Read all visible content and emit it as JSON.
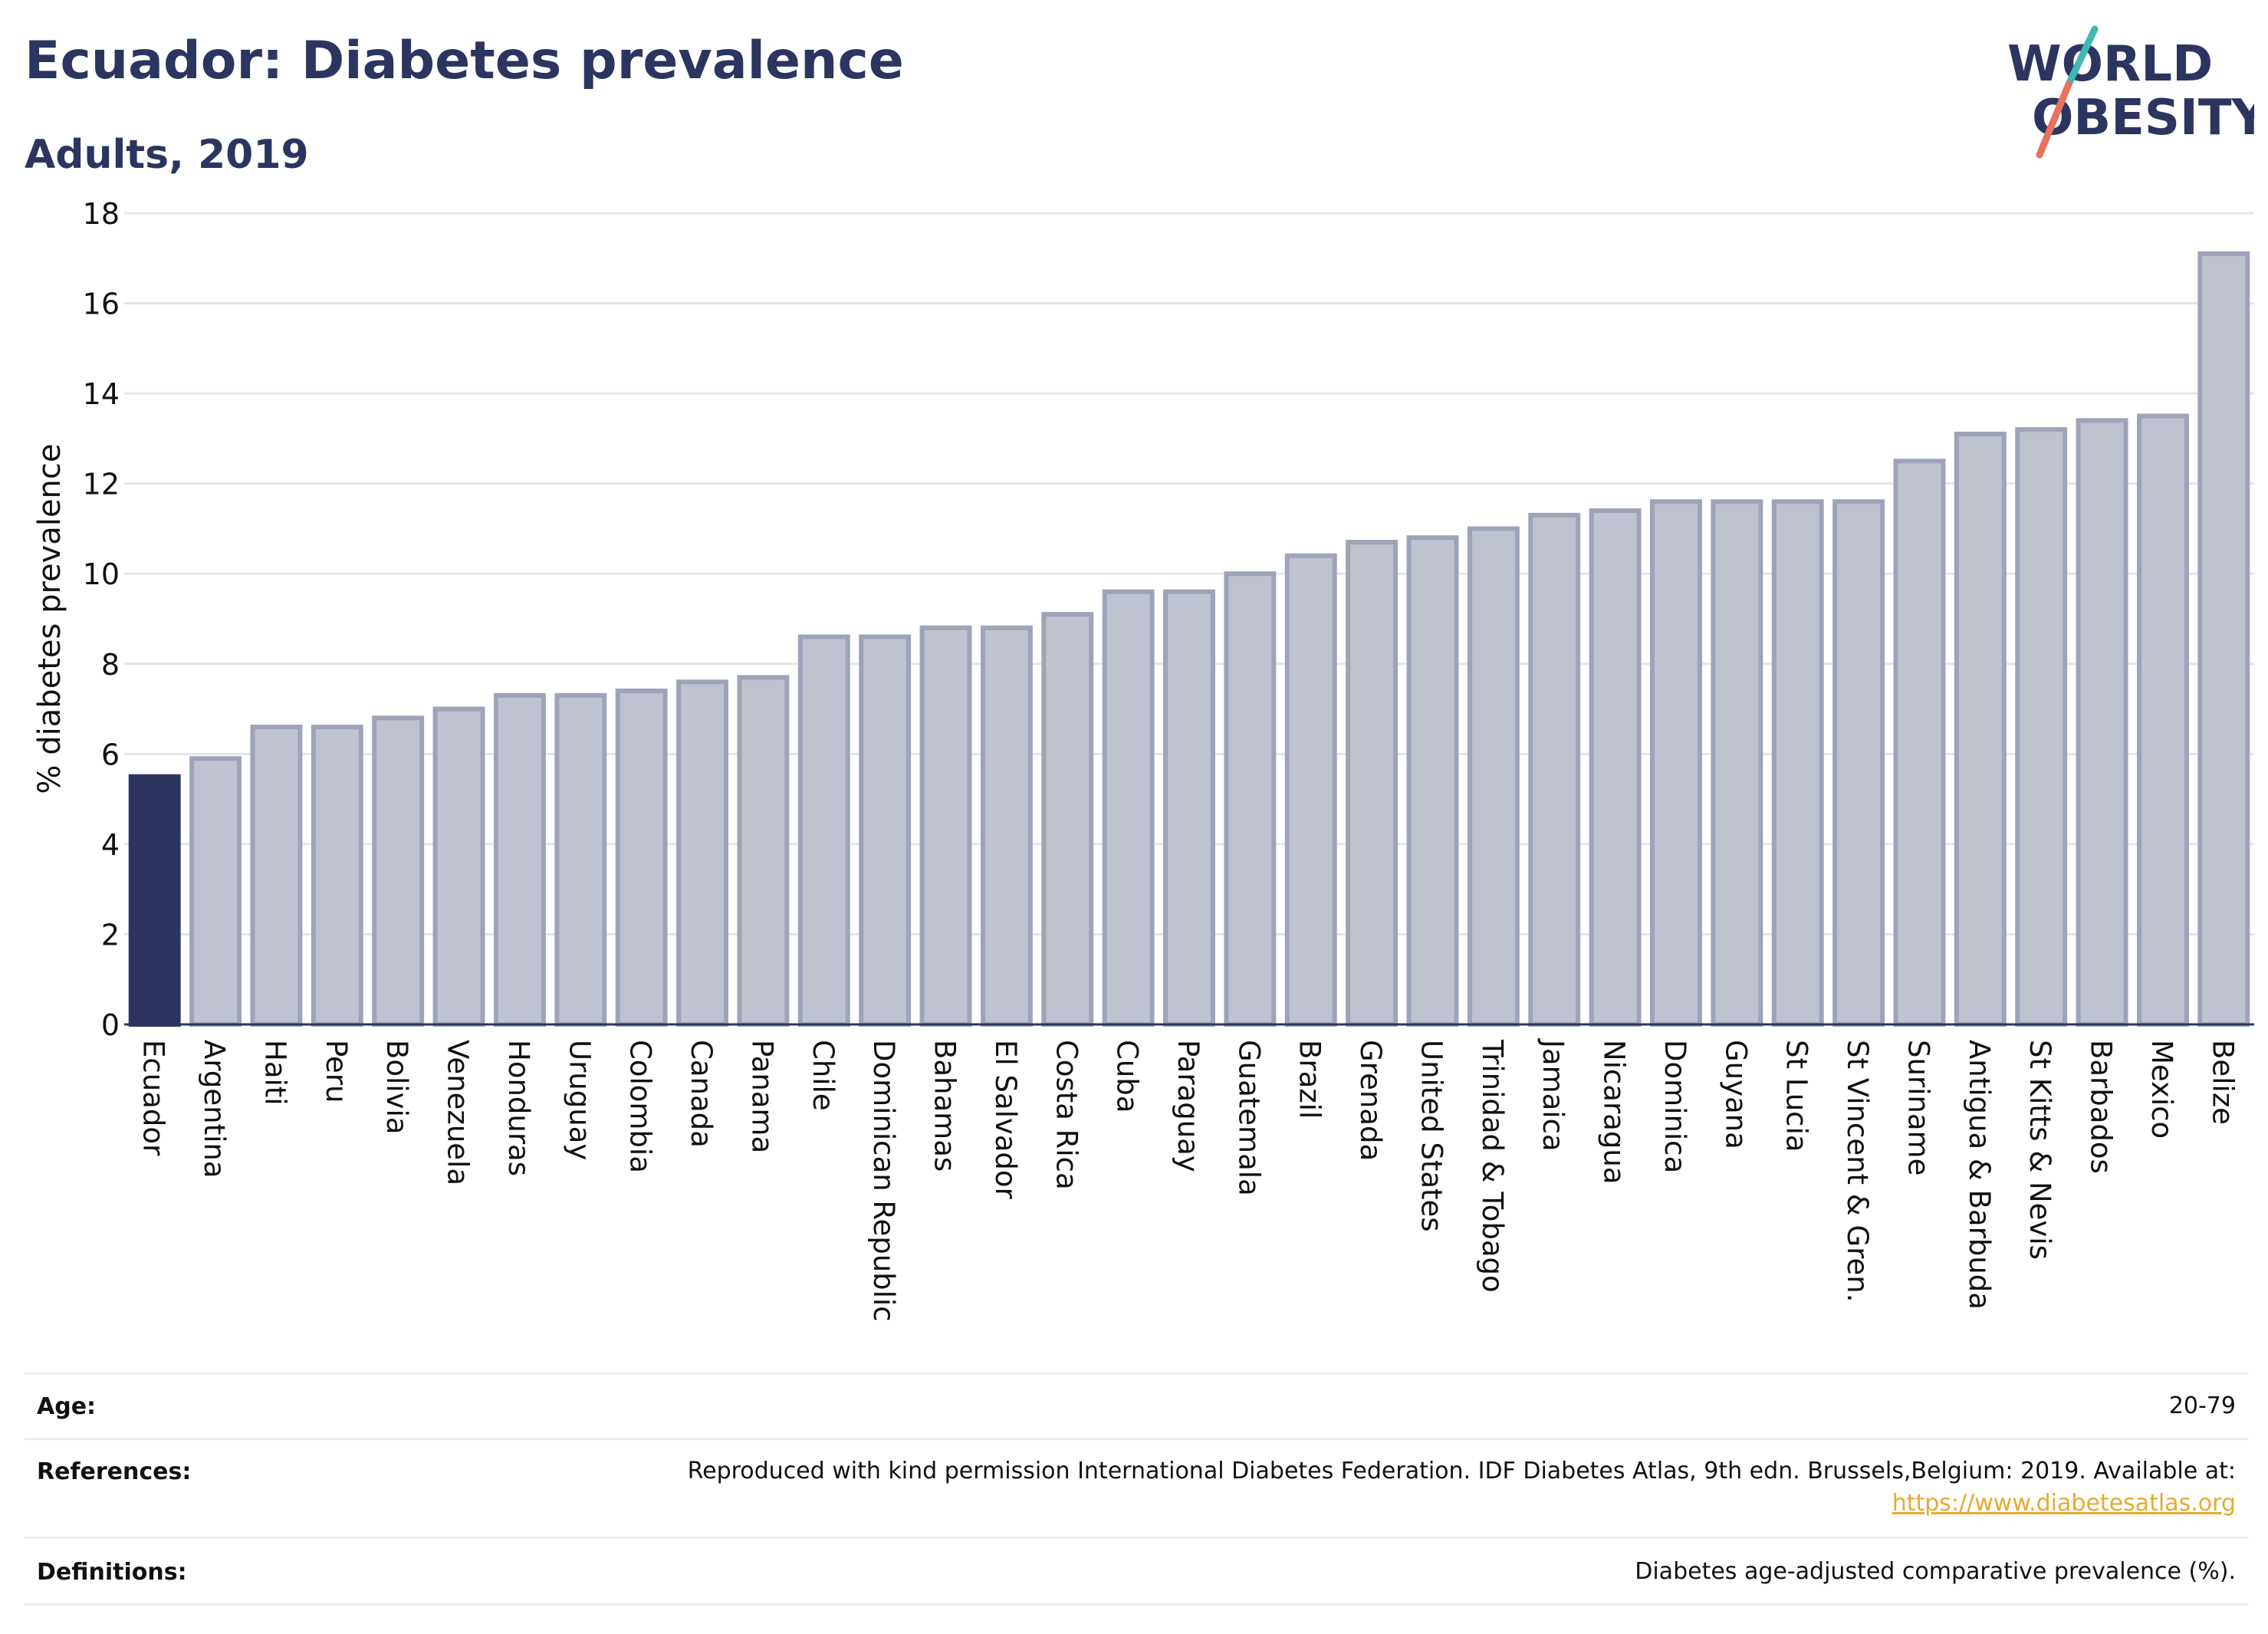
{
  "header": {
    "title": "Ecuador: Diabetes prevalence",
    "subtitle": "Adults, 2019"
  },
  "logo": {
    "line1": "WORLD",
    "line2": "OBESITY",
    "text_color": "#2c3560",
    "slash_colors": [
      "#e8715f",
      "#3fb8b0"
    ]
  },
  "chart_data": {
    "type": "bar",
    "title": "Ecuador: Diabetes prevalence",
    "subtitle": "Adults, 2019",
    "ylabel": "% diabetes prevalence",
    "xlabel": "",
    "ylim": [
      0,
      18
    ],
    "yticks": [
      0,
      2,
      4,
      6,
      8,
      10,
      12,
      14,
      16,
      18
    ],
    "grid": true,
    "highlight": "Ecuador",
    "colors": {
      "highlight": "#2c3560",
      "bar_fill": "#bfc2cf",
      "bar_stroke": "#9ea3b8",
      "grid": "#e4e6ea",
      "axis": "#2c3560"
    },
    "categories": [
      "Ecuador",
      "Argentina",
      "Haiti",
      "Peru",
      "Bolivia",
      "Venezuela",
      "Honduras",
      "Uruguay",
      "Colombia",
      "Canada",
      "Panama",
      "Chile",
      "Dominican Republic",
      "Bahamas",
      "El Salvador",
      "Costa Rica",
      "Cuba",
      "Paraguay",
      "Guatemala",
      "Brazil",
      "Grenada",
      "United States",
      "Trinidad & Tobago",
      "Jamaica",
      "Nicaragua",
      "Dominica",
      "Guyana",
      "St Lucia",
      "St Vincent & Gren.",
      "Suriname",
      "Antigua & Barbuda",
      "St Kitts & Nevis",
      "Barbados",
      "Mexico",
      "Belize"
    ],
    "values": [
      5.5,
      5.9,
      6.6,
      6.6,
      6.8,
      7.0,
      7.3,
      7.3,
      7.4,
      7.6,
      7.7,
      8.6,
      8.6,
      8.8,
      8.8,
      9.1,
      9.6,
      9.6,
      10.0,
      10.4,
      10.7,
      10.8,
      11.0,
      11.3,
      11.4,
      11.6,
      11.6,
      11.6,
      11.6,
      12.5,
      13.1,
      13.2,
      13.4,
      13.5,
      17.1
    ]
  },
  "info": {
    "age_label": "Age:",
    "age_value": "20-79",
    "references_label": "References:",
    "references_text": "Reproduced with kind permission International Diabetes Federation. IDF Diabetes Atlas, 9th edn. Brussels,Belgium: 2019. Available at:",
    "references_link": "https://www.diabetesatlas.org",
    "definitions_label": "Definitions:",
    "definitions_text": "Diabetes age-adjusted comparative prevalence (%)."
  }
}
